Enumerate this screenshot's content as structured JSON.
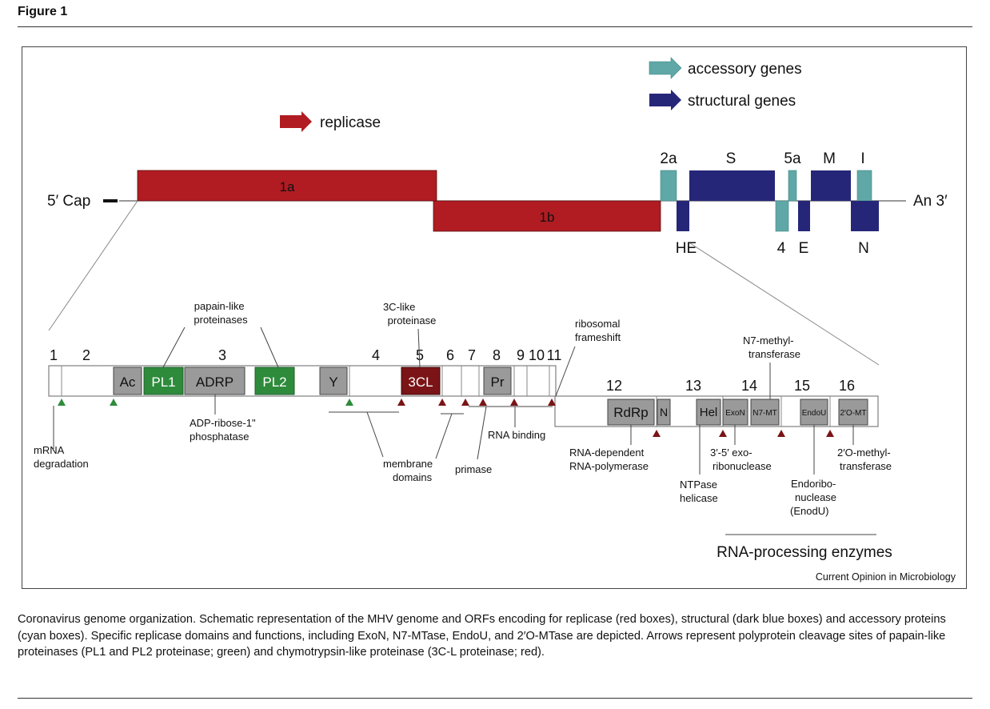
{
  "figure_heading": "Figure 1",
  "caption": "Coronavirus genome organization. Schematic representation of the MHV genome and ORFs encoding for replicase (red boxes), structural (dark blue boxes) and accessory proteins (cyan boxes). Specific replicase domains and functions, including ExoN, N7-MTase, EndoU, and 2′O-MTase are depicted. Arrows represent polyprotein cleavage sites of papain-like proteinases (PL1 and PL2 proteinase; green) and chymotrypsin-like proteinase (3C-L proteinase; red).",
  "credit": "Current Opinion in Microbiology",
  "colors": {
    "replicase": "#b01c22",
    "replicase_dark": "#7a1416",
    "accessory": "#5fa8a7",
    "structural": "#262679",
    "papain_green": "#2e8b3c",
    "domain_gray": "#9a9a9a"
  },
  "legend": {
    "replicase": "replicase",
    "accessory": "accessory genes",
    "structural": "structural genes"
  },
  "genome": {
    "five_prime": "5′ Cap",
    "three_prime": "An 3′",
    "orf_1a": "1a",
    "orf_1b": "1b",
    "genes_top": [
      "2a",
      "S",
      "5a",
      "M",
      "I"
    ],
    "genes_bottom": [
      "HE",
      "4",
      "E",
      "N"
    ]
  },
  "nsp_numbers": [
    "1",
    "2",
    "3",
    "4",
    "5",
    "6",
    "7",
    "8",
    "9",
    "10",
    "11",
    "12",
    "13",
    "14",
    "15",
    "16"
  ],
  "domains": {
    "ac": "Ac",
    "pl1": "PL1",
    "adrp": "ADRP",
    "pl2": "PL2",
    "y": "Y",
    "tcl": "3CL",
    "pr": "Pr",
    "rdrp": "RdRp",
    "n": "N",
    "hel": "Hel",
    "exon": "ExoN",
    "n7mt": "N7-MT",
    "endou": "EndoU",
    "omt": "2′O-MT"
  },
  "annotations": {
    "papain_like": [
      "papain-like",
      "proteinases"
    ],
    "tcl_proteinase": [
      "3C-like",
      "proteinase"
    ],
    "ribosomal_frameshift": [
      "ribosomal",
      "frameshift"
    ],
    "n7_methyltransferase": [
      "N7-methyl-",
      "transferase"
    ],
    "adp_ribose": [
      "ADP-ribose-1\"",
      "phosphatase"
    ],
    "mrna_degradation": [
      "mRNA",
      "degradation"
    ],
    "membrane_domains": [
      "membrane",
      "domains"
    ],
    "primase": [
      "primase"
    ],
    "rna_binding": [
      "RNA binding"
    ],
    "rdrp": [
      "RNA-dependent",
      "RNA-polymerase"
    ],
    "ntpase": [
      "NTPase",
      "helicase"
    ],
    "exoribonuclease": [
      "3′-5′ exo-",
      "ribonuclease"
    ],
    "endoribonuclease": [
      "Endoribo-",
      "nuclease",
      "(EnodU)"
    ],
    "omtase": [
      "2′O-methyl-",
      "transferase"
    ],
    "rna_processing": "RNA-processing enzymes"
  }
}
